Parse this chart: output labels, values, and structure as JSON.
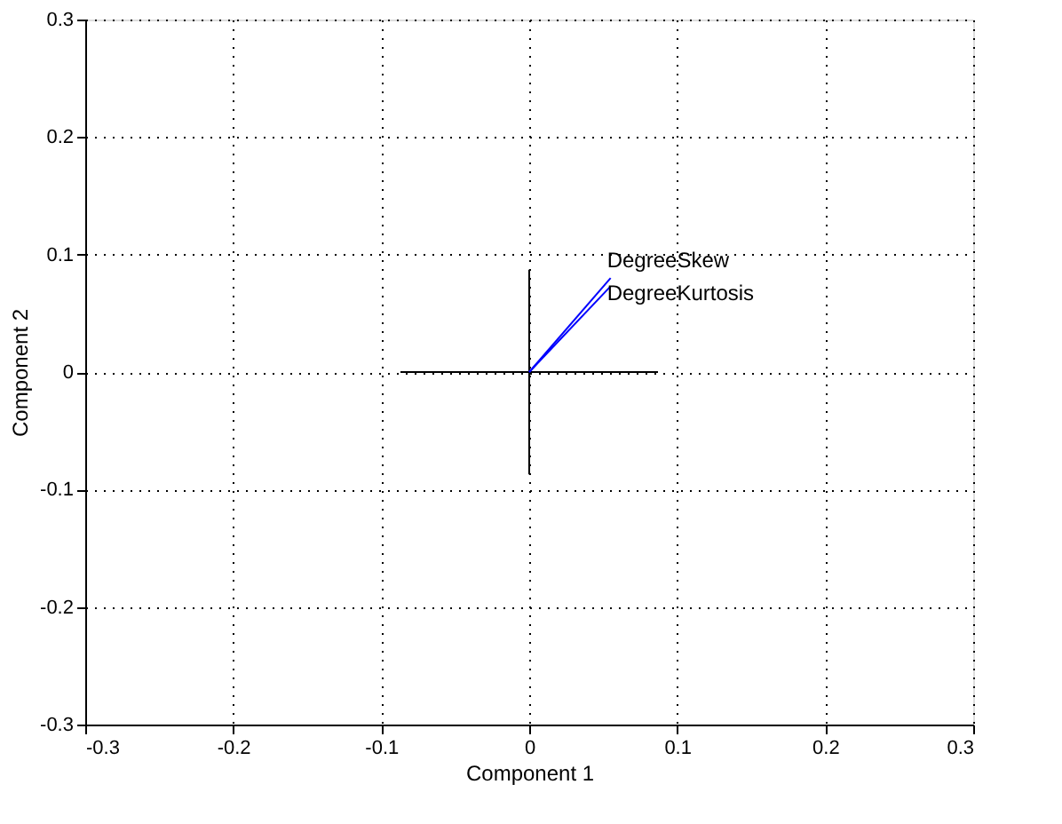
{
  "chart_data": {
    "type": "line",
    "xlabel": "Component 1",
    "ylabel": "Component 2",
    "xlim": [
      -0.3,
      0.3
    ],
    "ylim": [
      -0.3,
      0.3
    ],
    "xticks": [
      -0.3,
      -0.2,
      -0.1,
      0,
      0.1,
      0.2,
      0.3
    ],
    "yticks": [
      -0.3,
      -0.2,
      -0.1,
      0,
      0.1,
      0.2,
      0.3
    ],
    "grid": true,
    "marker": "none",
    "line_style": "solid",
    "series": [
      {
        "color": "#000000",
        "x": [
          -0.087,
          0.087
        ],
        "values": [
          0,
          0
        ]
      },
      {
        "color": "#000000",
        "x": [
          0,
          0
        ],
        "values": [
          -0.087,
          0.087
        ]
      },
      {
        "color": "#0000ff",
        "x": [
          0,
          0.055
        ],
        "values": [
          0,
          0.08
        ]
      },
      {
        "color": "#0000ff",
        "x": [
          0,
          0.055
        ],
        "values": [
          0,
          0.073
        ]
      }
    ],
    "annotations": [
      {
        "text": "DegreeSkew",
        "x": 0.055,
        "y": 0.08
      },
      {
        "text": "DegreeKurtosis",
        "x": 0.055,
        "y": 0.073
      }
    ]
  }
}
